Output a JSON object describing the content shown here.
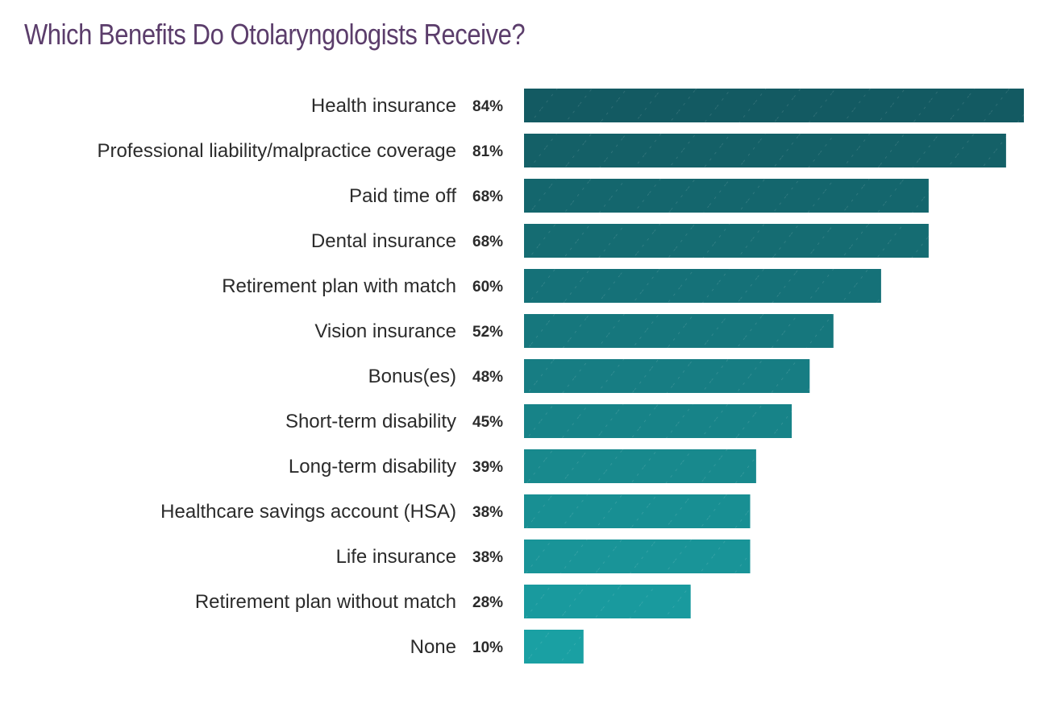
{
  "chart_data": {
    "type": "bar",
    "orientation": "horizontal",
    "title": "Which Benefits Do Otolaryngologists Receive?",
    "categories": [
      "Health insurance",
      "Professional liability/malpractice coverage",
      "Paid time off",
      "Dental insurance",
      "Retirement plan with match",
      "Vision insurance",
      "Bonus(es)",
      "Short-term disability",
      "Long-term disability",
      "Healthcare savings account (HSA)",
      "Life insurance",
      "Retirement plan without match",
      "None"
    ],
    "values": [
      84,
      81,
      68,
      68,
      60,
      52,
      48,
      45,
      39,
      38,
      38,
      28,
      10
    ],
    "value_labels": [
      "84%",
      "81%",
      "68%",
      "68%",
      "60%",
      "52%",
      "48%",
      "45%",
      "39%",
      "38%",
      "38%",
      "28%",
      "10%"
    ],
    "unit": "%",
    "xlim": [
      0,
      84
    ],
    "grid": false,
    "legend": "none",
    "colors": {
      "title": "#5b3d6b",
      "bar_top": "#135a62",
      "bar_bottom": "#1aa0a3",
      "text": "#2b2b2b"
    }
  }
}
